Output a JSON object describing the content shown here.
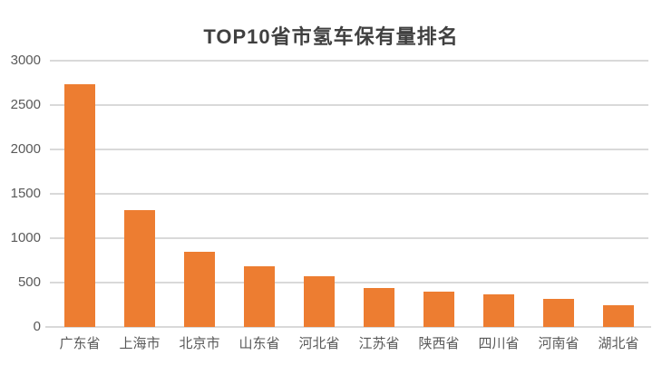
{
  "colors": {
    "background": "#FFFFFF",
    "bar": "#ED7D31",
    "gridline": "#D9D9D9",
    "axis_label": "#595959",
    "title": "#404040"
  },
  "chart_data": {
    "type": "bar",
    "title": "TOP10省市氢车保有量排名",
    "categories": [
      "广东省",
      "上海市",
      "北京市",
      "山东省",
      "河北省",
      "江苏省",
      "陕西省",
      "四川省",
      "河南省",
      "湖北省"
    ],
    "values": [
      2730,
      1320,
      850,
      685,
      570,
      440,
      400,
      365,
      315,
      245
    ],
    "xlabel": "",
    "ylabel": "",
    "ylim": [
      0,
      3000
    ],
    "yticks": [
      0,
      500,
      1000,
      1500,
      2000,
      2500,
      3000
    ],
    "grid": true,
    "legend": false,
    "bar_color": "#ED7D31"
  }
}
